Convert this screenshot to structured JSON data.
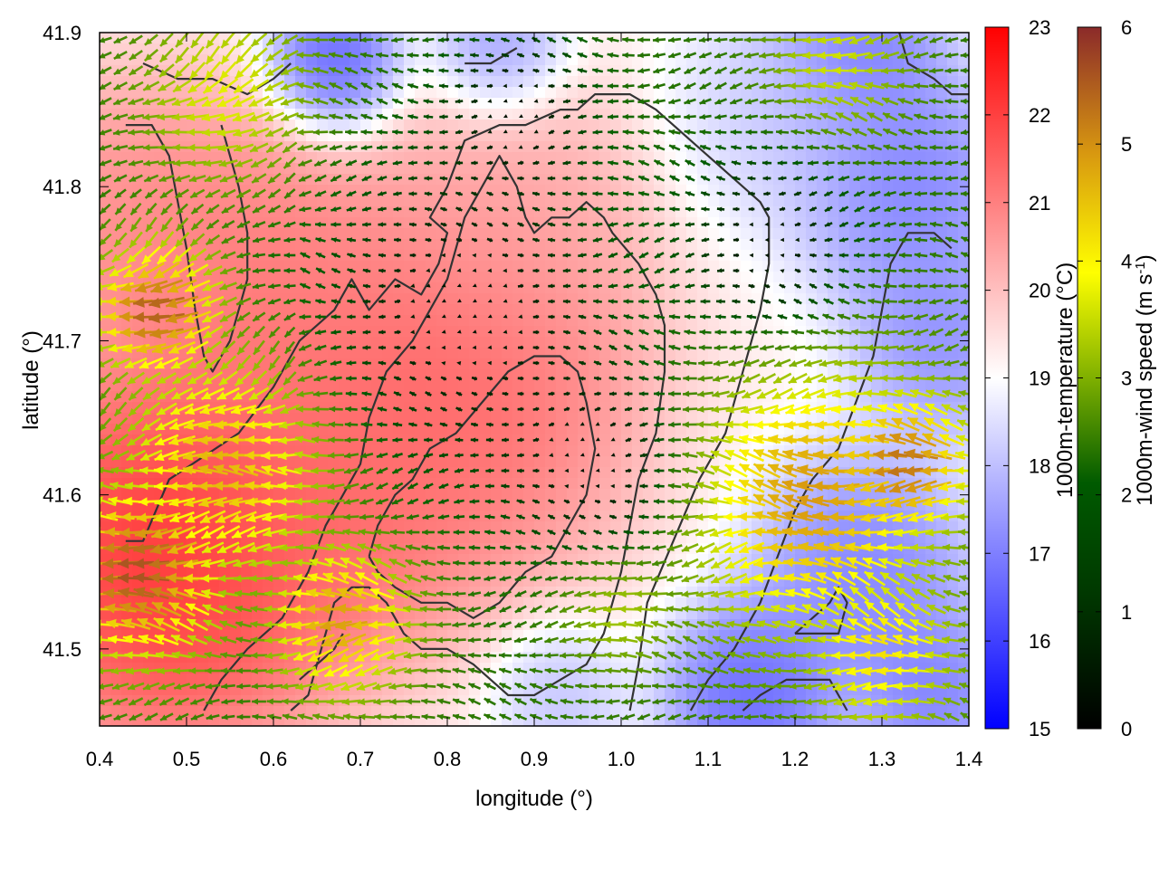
{
  "chart_data": {
    "type": "heatmap",
    "title": "",
    "xlabel": "longitude (°)",
    "ylabel": "latitude (°)",
    "xlim": [
      0.4,
      1.4
    ],
    "ylim": [
      41.45,
      41.9
    ],
    "x_ticks": [
      "0.4",
      "0.5",
      "0.6",
      "0.7",
      "0.8",
      "0.9",
      "1.0",
      "1.1",
      "1.2",
      "1.3",
      "1.4"
    ],
    "y_ticks": [
      "41.5",
      "41.6",
      "41.7",
      "41.8",
      "41.9"
    ],
    "grid": false,
    "temperature_colorbar": {
      "label": "1000m-temperature (°C)",
      "range": [
        15,
        23
      ],
      "ticks": [
        "15",
        "16",
        "17",
        "18",
        "19",
        "20",
        "21",
        "22",
        "23"
      ],
      "colors": [
        "#0000ff",
        "#ffffff",
        "#ff0000"
      ]
    },
    "wind_colorbar": {
      "label_main": "1000m-wind speed (m s",
      "label_sup": "-1",
      "label_end": ")",
      "range": [
        0,
        6
      ],
      "ticks": [
        "0",
        "1",
        "2",
        "3",
        "4",
        "5",
        "6"
      ],
      "colors": [
        "#000000",
        "#005a00",
        "#7fb000",
        "#ffff00",
        "#d89810",
        "#8b2a2a"
      ]
    },
    "temperature_field_centers": [
      {
        "lon": 0.48,
        "lat": 41.56,
        "t": 23.0,
        "r": 0.16
      },
      {
        "lon": 0.56,
        "lat": 41.74,
        "t": 21.5,
        "r": 0.14
      },
      {
        "lon": 0.8,
        "lat": 41.67,
        "t": 22.0,
        "r": 0.17
      },
      {
        "lon": 0.88,
        "lat": 41.78,
        "t": 20.5,
        "r": 0.12
      },
      {
        "lon": 0.66,
        "lat": 41.58,
        "t": 21.5,
        "r": 0.12
      },
      {
        "lon": 0.42,
        "lat": 41.78,
        "t": 21.0,
        "r": 0.12
      },
      {
        "lon": 0.67,
        "lat": 41.88,
        "t": 15.8,
        "r": 0.06
      },
      {
        "lon": 0.86,
        "lat": 41.89,
        "t": 17.0,
        "r": 0.06
      },
      {
        "lon": 1.33,
        "lat": 41.8,
        "t": 16.5,
        "r": 0.1
      },
      {
        "lon": 1.27,
        "lat": 41.89,
        "t": 16.3,
        "r": 0.08
      },
      {
        "lon": 1.37,
        "lat": 41.7,
        "t": 16.8,
        "r": 0.08
      },
      {
        "lon": 1.28,
        "lat": 41.55,
        "t": 16.5,
        "r": 0.1
      },
      {
        "lon": 1.15,
        "lat": 41.47,
        "t": 16.0,
        "r": 0.08
      },
      {
        "lon": 1.36,
        "lat": 41.47,
        "t": 16.5,
        "r": 0.07
      },
      {
        "lon": 0.93,
        "lat": 41.47,
        "t": 17.8,
        "r": 0.06
      },
      {
        "lon": 1.18,
        "lat": 41.85,
        "t": 18.0,
        "r": 0.1
      }
    ],
    "wind_field": {
      "base_speed_ms": 1.6,
      "direction": "toward west",
      "strong_zones": [
        {
          "lon": 0.45,
          "lat": 41.55,
          "speed": 5.6,
          "r": 0.09
        },
        {
          "lon": 0.47,
          "lat": 41.72,
          "speed": 5.5,
          "r": 0.07
        },
        {
          "lon": 0.55,
          "lat": 41.62,
          "speed": 4.6,
          "r": 0.12
        },
        {
          "lon": 0.68,
          "lat": 41.52,
          "speed": 4.8,
          "r": 0.08
        },
        {
          "lon": 1.22,
          "lat": 41.6,
          "speed": 4.8,
          "r": 0.15
        },
        {
          "lon": 1.33,
          "lat": 41.62,
          "speed": 5.2,
          "r": 0.08
        },
        {
          "lon": 1.3,
          "lat": 41.5,
          "speed": 4.0,
          "r": 0.09
        },
        {
          "lon": 1.25,
          "lat": 41.88,
          "speed": 3.2,
          "r": 0.08
        },
        {
          "lon": 0.55,
          "lat": 41.86,
          "speed": 3.4,
          "r": 0.1
        },
        {
          "lon": 1.0,
          "lat": 41.53,
          "speed": 3.0,
          "r": 0.07
        }
      ],
      "calm_zones": [
        {
          "lon": 0.82,
          "lat": 41.72,
          "r": 0.17
        },
        {
          "lon": 0.97,
          "lat": 41.62,
          "r": 0.1
        },
        {
          "lon": 1.17,
          "lat": 41.76,
          "r": 0.1
        },
        {
          "lon": 0.88,
          "lat": 41.85,
          "r": 0.08
        }
      ]
    },
    "contours": [
      [
        [
          0.43,
          41.57
        ],
        [
          0.45,
          41.57
        ],
        [
          0.48,
          41.61
        ],
        [
          0.56,
          41.64
        ],
        [
          0.6,
          41.67
        ],
        [
          0.63,
          41.7
        ],
        [
          0.67,
          41.72
        ],
        [
          0.69,
          41.74
        ],
        [
          0.71,
          41.72
        ],
        [
          0.74,
          41.74
        ],
        [
          0.77,
          41.73
        ],
        [
          0.79,
          41.75
        ],
        [
          0.8,
          41.77
        ],
        [
          0.78,
          41.78
        ],
        [
          0.8,
          41.8
        ],
        [
          0.82,
          41.83
        ],
        [
          0.86,
          41.84
        ],
        [
          0.89,
          41.84
        ],
        [
          0.93,
          41.85
        ],
        [
          0.95,
          41.85
        ],
        [
          0.97,
          41.86
        ],
        [
          1.01,
          41.86
        ],
        [
          1.04,
          41.85
        ],
        [
          1.08,
          41.83
        ],
        [
          1.12,
          41.81
        ],
        [
          1.16,
          41.79
        ],
        [
          1.17,
          41.78
        ],
        [
          1.17,
          41.75
        ],
        [
          1.16,
          41.72
        ],
        [
          1.14,
          41.68
        ],
        [
          1.12,
          41.64
        ],
        [
          1.09,
          41.61
        ],
        [
          1.06,
          41.57
        ],
        [
          1.03,
          41.53
        ],
        [
          1.02,
          41.49
        ],
        [
          1.01,
          41.46
        ]
      ],
      [
        [
          0.52,
          41.46
        ],
        [
          0.54,
          41.48
        ],
        [
          0.57,
          41.5
        ],
        [
          0.61,
          41.52
        ],
        [
          0.64,
          41.55
        ],
        [
          0.66,
          41.58
        ],
        [
          0.68,
          41.6
        ],
        [
          0.7,
          41.62
        ],
        [
          0.71,
          41.65
        ],
        [
          0.73,
          41.68
        ],
        [
          0.76,
          41.7
        ],
        [
          0.78,
          41.72
        ],
        [
          0.8,
          41.74
        ],
        [
          0.82,
          41.78
        ],
        [
          0.84,
          41.8
        ],
        [
          0.86,
          41.82
        ],
        [
          0.88,
          41.8
        ],
        [
          0.89,
          41.78
        ],
        [
          0.9,
          41.77
        ],
        [
          0.92,
          41.78
        ],
        [
          0.94,
          41.78
        ],
        [
          0.96,
          41.79
        ],
        [
          0.98,
          41.78
        ],
        [
          0.99,
          41.77
        ],
        [
          1.02,
          41.75
        ],
        [
          1.04,
          41.73
        ],
        [
          1.05,
          41.71
        ],
        [
          1.05,
          41.68
        ],
        [
          1.04,
          41.64
        ],
        [
          1.02,
          41.61
        ],
        [
          1.01,
          41.58
        ],
        [
          1.0,
          41.55
        ],
        [
          0.99,
          41.53
        ],
        [
          0.98,
          41.51
        ],
        [
          0.96,
          41.49
        ],
        [
          0.93,
          41.48
        ],
        [
          0.9,
          41.47
        ],
        [
          0.87,
          41.47
        ],
        [
          0.85,
          41.48
        ],
        [
          0.83,
          41.49
        ],
        [
          0.8,
          41.5
        ],
        [
          0.77,
          41.5
        ],
        [
          0.75,
          41.51
        ],
        [
          0.73,
          41.53
        ],
        [
          0.71,
          41.54
        ],
        [
          0.69,
          41.54
        ],
        [
          0.67,
          41.53
        ],
        [
          0.66,
          41.51
        ],
        [
          0.65,
          41.49
        ],
        [
          0.64,
          41.47
        ],
        [
          0.62,
          41.46
        ]
      ],
      [
        [
          0.71,
          41.56
        ],
        [
          0.72,
          41.58
        ],
        [
          0.74,
          41.6
        ],
        [
          0.76,
          41.61
        ],
        [
          0.78,
          41.63
        ],
        [
          0.81,
          41.64
        ],
        [
          0.84,
          41.66
        ],
        [
          0.87,
          41.68
        ],
        [
          0.9,
          41.69
        ],
        [
          0.93,
          41.69
        ],
        [
          0.95,
          41.68
        ],
        [
          0.96,
          41.66
        ],
        [
          0.97,
          41.63
        ],
        [
          0.96,
          41.6
        ],
        [
          0.94,
          41.58
        ],
        [
          0.92,
          41.56
        ],
        [
          0.89,
          41.55
        ],
        [
          0.86,
          41.53
        ],
        [
          0.83,
          41.52
        ],
        [
          0.8,
          41.53
        ],
        [
          0.77,
          41.53
        ],
        [
          0.74,
          41.54
        ],
        [
          0.72,
          41.55
        ],
        [
          0.71,
          41.56
        ]
      ],
      [
        [
          1.08,
          41.46
        ],
        [
          1.1,
          41.48
        ],
        [
          1.13,
          41.5
        ],
        [
          1.16,
          41.53
        ],
        [
          1.18,
          41.56
        ],
        [
          1.2,
          41.59
        ],
        [
          1.22,
          41.61
        ],
        [
          1.25,
          41.63
        ],
        [
          1.27,
          41.66
        ],
        [
          1.29,
          41.69
        ],
        [
          1.3,
          41.72
        ],
        [
          1.31,
          41.75
        ],
        [
          1.33,
          41.77
        ],
        [
          1.36,
          41.77
        ],
        [
          1.38,
          41.76
        ]
      ],
      [
        [
          0.45,
          41.88
        ],
        [
          0.49,
          41.87
        ],
        [
          0.53,
          41.87
        ],
        [
          0.57,
          41.86
        ],
        [
          0.6,
          41.87
        ],
        [
          0.62,
          41.88
        ]
      ],
      [
        [
          0.43,
          41.84
        ],
        [
          0.46,
          41.84
        ],
        [
          0.48,
          41.82
        ],
        [
          0.49,
          41.79
        ],
        [
          0.5,
          41.76
        ],
        [
          0.51,
          41.72
        ],
        [
          0.52,
          41.69
        ],
        [
          0.53,
          41.68
        ],
        [
          0.54,
          41.69
        ],
        [
          0.55,
          41.7
        ],
        [
          0.56,
          41.72
        ],
        [
          0.57,
          41.74
        ],
        [
          0.57,
          41.77
        ],
        [
          0.56,
          41.8
        ],
        [
          0.55,
          41.82
        ],
        [
          0.54,
          41.84
        ]
      ],
      [
        [
          1.2,
          41.51
        ],
        [
          1.23,
          41.51
        ],
        [
          1.25,
          41.51
        ],
        [
          1.26,
          41.53
        ],
        [
          1.25,
          41.54
        ],
        [
          1.24,
          41.53
        ],
        [
          1.22,
          41.52
        ],
        [
          1.2,
          41.51
        ]
      ],
      [
        [
          1.14,
          41.46
        ],
        [
          1.16,
          41.47
        ],
        [
          1.19,
          41.48
        ],
        [
          1.22,
          41.48
        ],
        [
          1.24,
          41.48
        ],
        [
          1.26,
          41.46
        ]
      ],
      [
        [
          1.32,
          41.9
        ],
        [
          1.33,
          41.88
        ],
        [
          1.36,
          41.87
        ],
        [
          1.38,
          41.86
        ],
        [
          1.4,
          41.86
        ]
      ],
      [
        [
          0.63,
          41.48
        ],
        [
          0.65,
          41.49
        ],
        [
          0.67,
          41.5
        ],
        [
          0.68,
          41.51
        ]
      ],
      [
        [
          0.82,
          41.88
        ],
        [
          0.85,
          41.88
        ],
        [
          0.88,
          41.89
        ]
      ]
    ]
  }
}
